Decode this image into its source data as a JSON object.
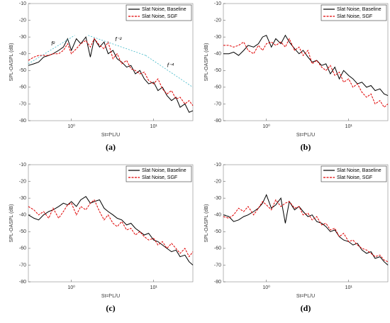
{
  "chart_data": [
    {
      "type": "line",
      "panel_label": "(a)",
      "xlabel": "St=f*L/U",
      "ylabel": "SPL-OASPL (dB)",
      "log_x": true,
      "legend": "upper right",
      "xlim": [
        0.3,
        30
      ],
      "ylim": [
        -80,
        -10
      ],
      "xticks": [
        {
          "value": 1,
          "label": "10⁰"
        },
        {
          "value": 10,
          "label": "10¹"
        }
      ],
      "yticks": [
        -80,
        -70,
        -60,
        -50,
        -40,
        -30,
        -20,
        -10
      ],
      "x": [
        0.3,
        0.35,
        0.4,
        0.46,
        0.53,
        0.6,
        0.7,
        0.8,
        0.9,
        1.0,
        1.15,
        1.3,
        1.5,
        1.7,
        1.9,
        2.2,
        2.5,
        2.8,
        3.2,
        3.6,
        4.1,
        4.7,
        5.3,
        6,
        6.8,
        7.7,
        8.7,
        10,
        11.3,
        12.8,
        14.5,
        16.5,
        18.7,
        21,
        24,
        27,
        30
      ],
      "series": [
        {
          "name": "Slat Noise, Baseline",
          "color": "#000000",
          "dash": false,
          "values": [
            -47,
            -46,
            -45,
            -42,
            -41,
            -40,
            -38,
            -36,
            -31,
            -38,
            -31,
            -34,
            -30,
            -42,
            -31,
            -36,
            -33,
            -40,
            -38,
            -43,
            -45,
            -48,
            -47,
            -52,
            -50,
            -55,
            -58,
            -57,
            -62,
            -60,
            -65,
            -68,
            -66,
            -72,
            -70,
            -75,
            -74
          ]
        },
        {
          "name": "Slat Noise, SGF",
          "color": "#e00000",
          "dash": true,
          "values": [
            -44,
            -42,
            -41,
            -41,
            -41,
            -40,
            -40,
            -38,
            -34,
            -40,
            -37,
            -34,
            -32,
            -36,
            -31,
            -35,
            -37,
            -33,
            -43,
            -40,
            -46,
            -44,
            -49,
            -50,
            -52,
            -51,
            -56,
            -58,
            -55,
            -61,
            -64,
            -62,
            -67,
            -66,
            -70,
            -68,
            -71
          ]
        }
      ],
      "reference_lines": [
        {
          "label": "f²",
          "color": "#3fb8c8",
          "x": [
            0.3,
            1.1
          ],
          "y": [
            -46,
            -29
          ]
        },
        {
          "label": "f⁻²",
          "color": "#3fb8c8",
          "x": [
            1.6,
            8
          ],
          "y": [
            -29,
            -41
          ]
        },
        {
          "label": "f⁻⁴",
          "color": "#3fb8c8",
          "x": [
            8,
            30
          ],
          "y": [
            -41,
            -60
          ]
        }
      ]
    },
    {
      "type": "line",
      "panel_label": "(b)",
      "xlabel": "St=f*L/U",
      "ylabel": "SPL-OASPL (dB)",
      "log_x": true,
      "legend": "upper right",
      "xlim": [
        0.3,
        30
      ],
      "ylim": [
        -80,
        -10
      ],
      "xticks": [
        {
          "value": 1,
          "label": "10⁰"
        },
        {
          "value": 10,
          "label": "10¹"
        }
      ],
      "yticks": [
        -80,
        -70,
        -60,
        -50,
        -40,
        -30,
        -20,
        -10
      ],
      "x": [
        0.3,
        0.35,
        0.4,
        0.46,
        0.53,
        0.6,
        0.7,
        0.8,
        0.9,
        1.0,
        1.15,
        1.3,
        1.5,
        1.7,
        1.9,
        2.2,
        2.5,
        2.8,
        3.2,
        3.6,
        4.1,
        4.7,
        5.3,
        6,
        6.8,
        7.7,
        8.7,
        10,
        11.3,
        12.8,
        14.5,
        16.5,
        18.7,
        21,
        24,
        27,
        30
      ],
      "series": [
        {
          "name": "Slat Noise, Baseline",
          "color": "#000000",
          "dash": false,
          "values": [
            -40,
            -40,
            -39,
            -41,
            -38,
            -35,
            -36,
            -34,
            -30,
            -29,
            -36,
            -31,
            -34,
            -29,
            -33,
            -37,
            -40,
            -38,
            -42,
            -45,
            -44,
            -47,
            -46,
            -52,
            -48,
            -55,
            -50,
            -53,
            -55,
            -58,
            -57,
            -60,
            -59,
            -62,
            -61,
            -64,
            -65
          ]
        },
        {
          "name": "Slat Noise, SGF",
          "color": "#e00000",
          "dash": true,
          "values": [
            -35,
            -35,
            -36,
            -35,
            -33,
            -38,
            -40,
            -35,
            -38,
            -34,
            -33,
            -35,
            -33,
            -36,
            -31,
            -38,
            -36,
            -41,
            -38,
            -46,
            -44,
            -48,
            -50,
            -47,
            -53,
            -51,
            -57,
            -55,
            -60,
            -58,
            -63,
            -66,
            -64,
            -70,
            -68,
            -72,
            -70
          ]
        }
      ]
    },
    {
      "type": "line",
      "panel_label": "(c)",
      "xlabel": "St=f*L/U",
      "ylabel": "SPL-OASPL (dB)",
      "log_x": true,
      "legend": "upper right",
      "xlim": [
        0.3,
        30
      ],
      "ylim": [
        -80,
        -10
      ],
      "xticks": [
        {
          "value": 1,
          "label": "10⁰"
        },
        {
          "value": 10,
          "label": "10¹"
        }
      ],
      "yticks": [
        -80,
        -70,
        -60,
        -50,
        -40,
        -30,
        -20,
        -10
      ],
      "x": [
        0.3,
        0.35,
        0.4,
        0.46,
        0.53,
        0.6,
        0.7,
        0.8,
        0.9,
        1.0,
        1.15,
        1.3,
        1.5,
        1.7,
        1.9,
        2.2,
        2.5,
        2.8,
        3.2,
        3.6,
        4.1,
        4.7,
        5.3,
        6,
        6.8,
        7.7,
        8.7,
        10,
        11.3,
        12.8,
        14.5,
        16.5,
        18.7,
        21,
        24,
        27,
        30
      ],
      "series": [
        {
          "name": "Slat Noise, Baseline",
          "color": "#000000",
          "dash": false,
          "values": [
            -40,
            -42,
            -43,
            -40,
            -38,
            -37,
            -35,
            -33,
            -34,
            -32,
            -35,
            -31,
            -29,
            -33,
            -32,
            -31,
            -36,
            -38,
            -40,
            -42,
            -43,
            -46,
            -45,
            -48,
            -50,
            -52,
            -51,
            -55,
            -56,
            -58,
            -60,
            -62,
            -61,
            -65,
            -64,
            -68,
            -70
          ]
        },
        {
          "name": "Slat Noise, SGF",
          "color": "#e00000",
          "dash": true,
          "values": [
            -35,
            -37,
            -40,
            -38,
            -42,
            -36,
            -42,
            -38,
            -34,
            -33,
            -40,
            -35,
            -37,
            -33,
            -31,
            -38,
            -43,
            -40,
            -45,
            -47,
            -44,
            -49,
            -48,
            -52,
            -50,
            -53,
            -55,
            -54,
            -58,
            -56,
            -60,
            -57,
            -60,
            -63,
            -60,
            -65,
            -62
          ]
        }
      ]
    },
    {
      "type": "line",
      "panel_label": "(d)",
      "xlabel": "St=f*L/U",
      "ylabel": "SPL-OASPL (dB)",
      "log_x": true,
      "legend": "upper right",
      "xlim": [
        0.3,
        30
      ],
      "ylim": [
        -80,
        -10
      ],
      "xticks": [
        {
          "value": 1,
          "label": "10⁰"
        },
        {
          "value": 10,
          "label": "10¹"
        }
      ],
      "yticks": [
        -80,
        -70,
        -60,
        -50,
        -40,
        -30,
        -20,
        -10
      ],
      "x": [
        0.3,
        0.35,
        0.4,
        0.46,
        0.53,
        0.6,
        0.7,
        0.8,
        0.9,
        1.0,
        1.15,
        1.3,
        1.5,
        1.7,
        1.9,
        2.2,
        2.5,
        2.8,
        3.2,
        3.6,
        4.1,
        4.7,
        5.3,
        6,
        6.8,
        7.7,
        8.7,
        10,
        11.3,
        12.8,
        14.5,
        16.5,
        18.7,
        21,
        24,
        27,
        30
      ],
      "series": [
        {
          "name": "Slat Noise, Baseline",
          "color": "#000000",
          "dash": false,
          "values": [
            -40,
            -41,
            -44,
            -43,
            -41,
            -40,
            -38,
            -36,
            -33,
            -28,
            -36,
            -34,
            -30,
            -45,
            -32,
            -37,
            -35,
            -38,
            -41,
            -40,
            -44,
            -45,
            -47,
            -50,
            -49,
            -53,
            -55,
            -56,
            -58,
            -57,
            -61,
            -63,
            -62,
            -66,
            -65,
            -68,
            -70
          ]
        },
        {
          "name": "Slat Noise, SGF",
          "color": "#e00000",
          "dash": true,
          "values": [
            -41,
            -42,
            -40,
            -36,
            -38,
            -35,
            -40,
            -36,
            -32,
            -34,
            -37,
            -31,
            -35,
            -33,
            -32,
            -36,
            -35,
            -40,
            -39,
            -43,
            -41,
            -46,
            -45,
            -49,
            -48,
            -53,
            -51,
            -56,
            -55,
            -58,
            -60,
            -61,
            -63,
            -65,
            -64,
            -67,
            -68
          ]
        }
      ]
    }
  ]
}
